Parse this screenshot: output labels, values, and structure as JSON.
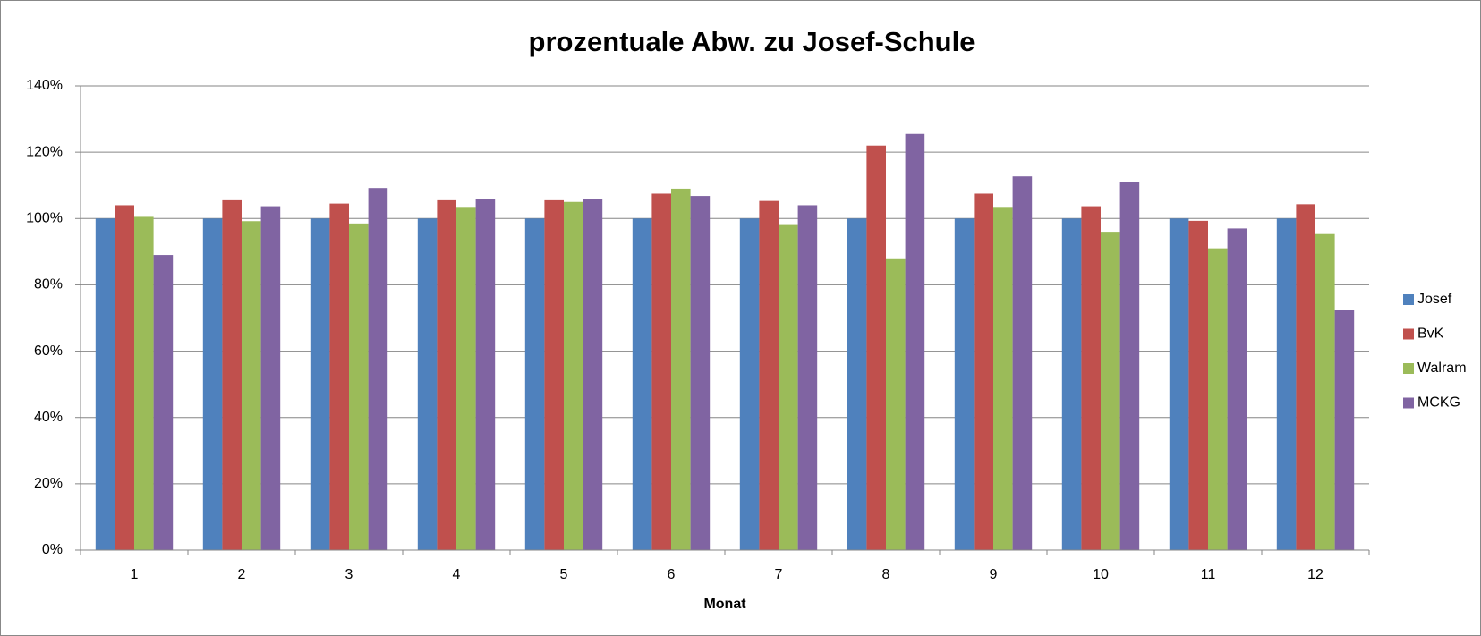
{
  "chart_data": {
    "type": "bar",
    "title": "prozentuale Abw. zu Josef-Schule",
    "x_label": "Monat",
    "categories": [
      "1",
      "2",
      "3",
      "4",
      "5",
      "6",
      "7",
      "8",
      "9",
      "10",
      "11",
      "12"
    ],
    "series": [
      {
        "name": "Josef",
        "color": "#4f81bd",
        "values": [
          100,
          100,
          100,
          100,
          100,
          100,
          100,
          100,
          100,
          100,
          100,
          100
        ]
      },
      {
        "name": "BvK",
        "color": "#c0504d",
        "values": [
          104,
          105.5,
          104.5,
          105.5,
          105.5,
          107.5,
          105.3,
          122,
          107.5,
          103.7,
          99.3,
          104.3
        ]
      },
      {
        "name": "Walram",
        "color": "#9bbb59",
        "values": [
          100.5,
          99.2,
          98.5,
          103.5,
          105,
          109,
          98.3,
          88,
          103.5,
          96,
          91,
          95.3
        ]
      },
      {
        "name": "MCKG",
        "color": "#8064a2",
        "values": [
          89,
          103.7,
          109.2,
          106,
          106,
          106.8,
          104,
          125.5,
          112.7,
          111,
          97,
          72.5
        ]
      }
    ],
    "ylim": [
      0,
      140
    ],
    "yticks": [
      {
        "value": 0,
        "label": "0%"
      },
      {
        "value": 20,
        "label": "20%"
      },
      {
        "value": 40,
        "label": "40%"
      },
      {
        "value": 60,
        "label": "60%"
      },
      {
        "value": 80,
        "label": "80%"
      },
      {
        "value": 100,
        "label": "100%"
      },
      {
        "value": 120,
        "label": "120%"
      },
      {
        "value": 140,
        "label": "140%"
      }
    ],
    "grid": true,
    "legend": "right"
  }
}
